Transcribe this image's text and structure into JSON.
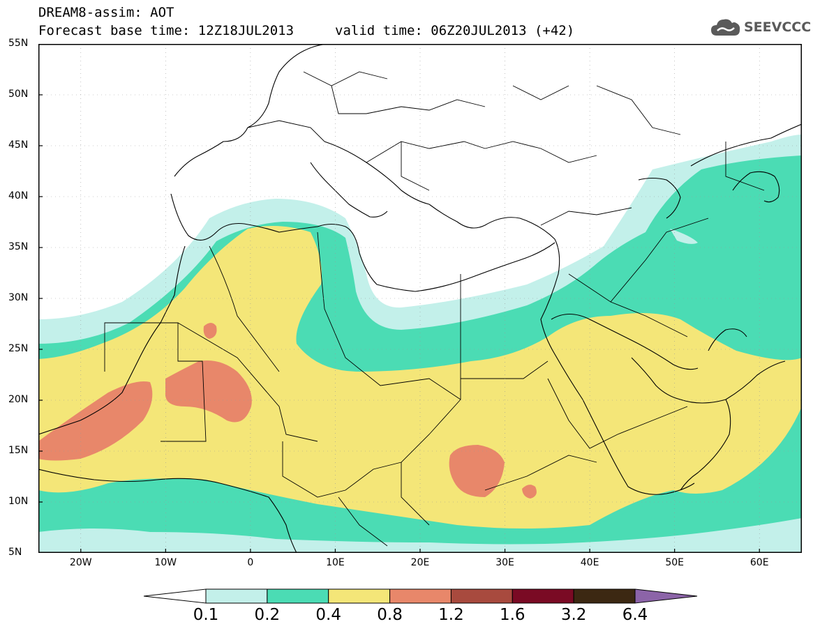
{
  "header": {
    "title": "DREAM8-assim: AOT",
    "base_time": "Forecast base time: 12Z18JUL2013",
    "valid_time": "valid time: 06Z20JUL2013 (+42)",
    "logo_text": "SEEVCCC",
    "logo_icon": "cloud-icon"
  },
  "map": {
    "lat_labels": [
      "55N",
      "50N",
      "45N",
      "40N",
      "35N",
      "30N",
      "25N",
      "20N",
      "15N",
      "10N",
      "5N"
    ],
    "lon_labels": [
      "20W",
      "10W",
      "0",
      "10E",
      "20E",
      "30E",
      "40E",
      "50E",
      "60E"
    ],
    "projection": "lat-lon",
    "extent": {
      "lon": [
        -25,
        65
      ],
      "lat": [
        5,
        55
      ]
    }
  },
  "colorbar": {
    "labels": [
      "0.1",
      "0.2",
      "0.4",
      "0.8",
      "1.2",
      "1.6",
      "3.2",
      "6.4"
    ],
    "colors": [
      "#ffffff",
      "#c3f0ea",
      "#4bdcb4",
      "#f4e678",
      "#e8876a",
      "#a84a3e",
      "#7a0a24",
      "#3c2812",
      "#8c64a8"
    ]
  }
}
